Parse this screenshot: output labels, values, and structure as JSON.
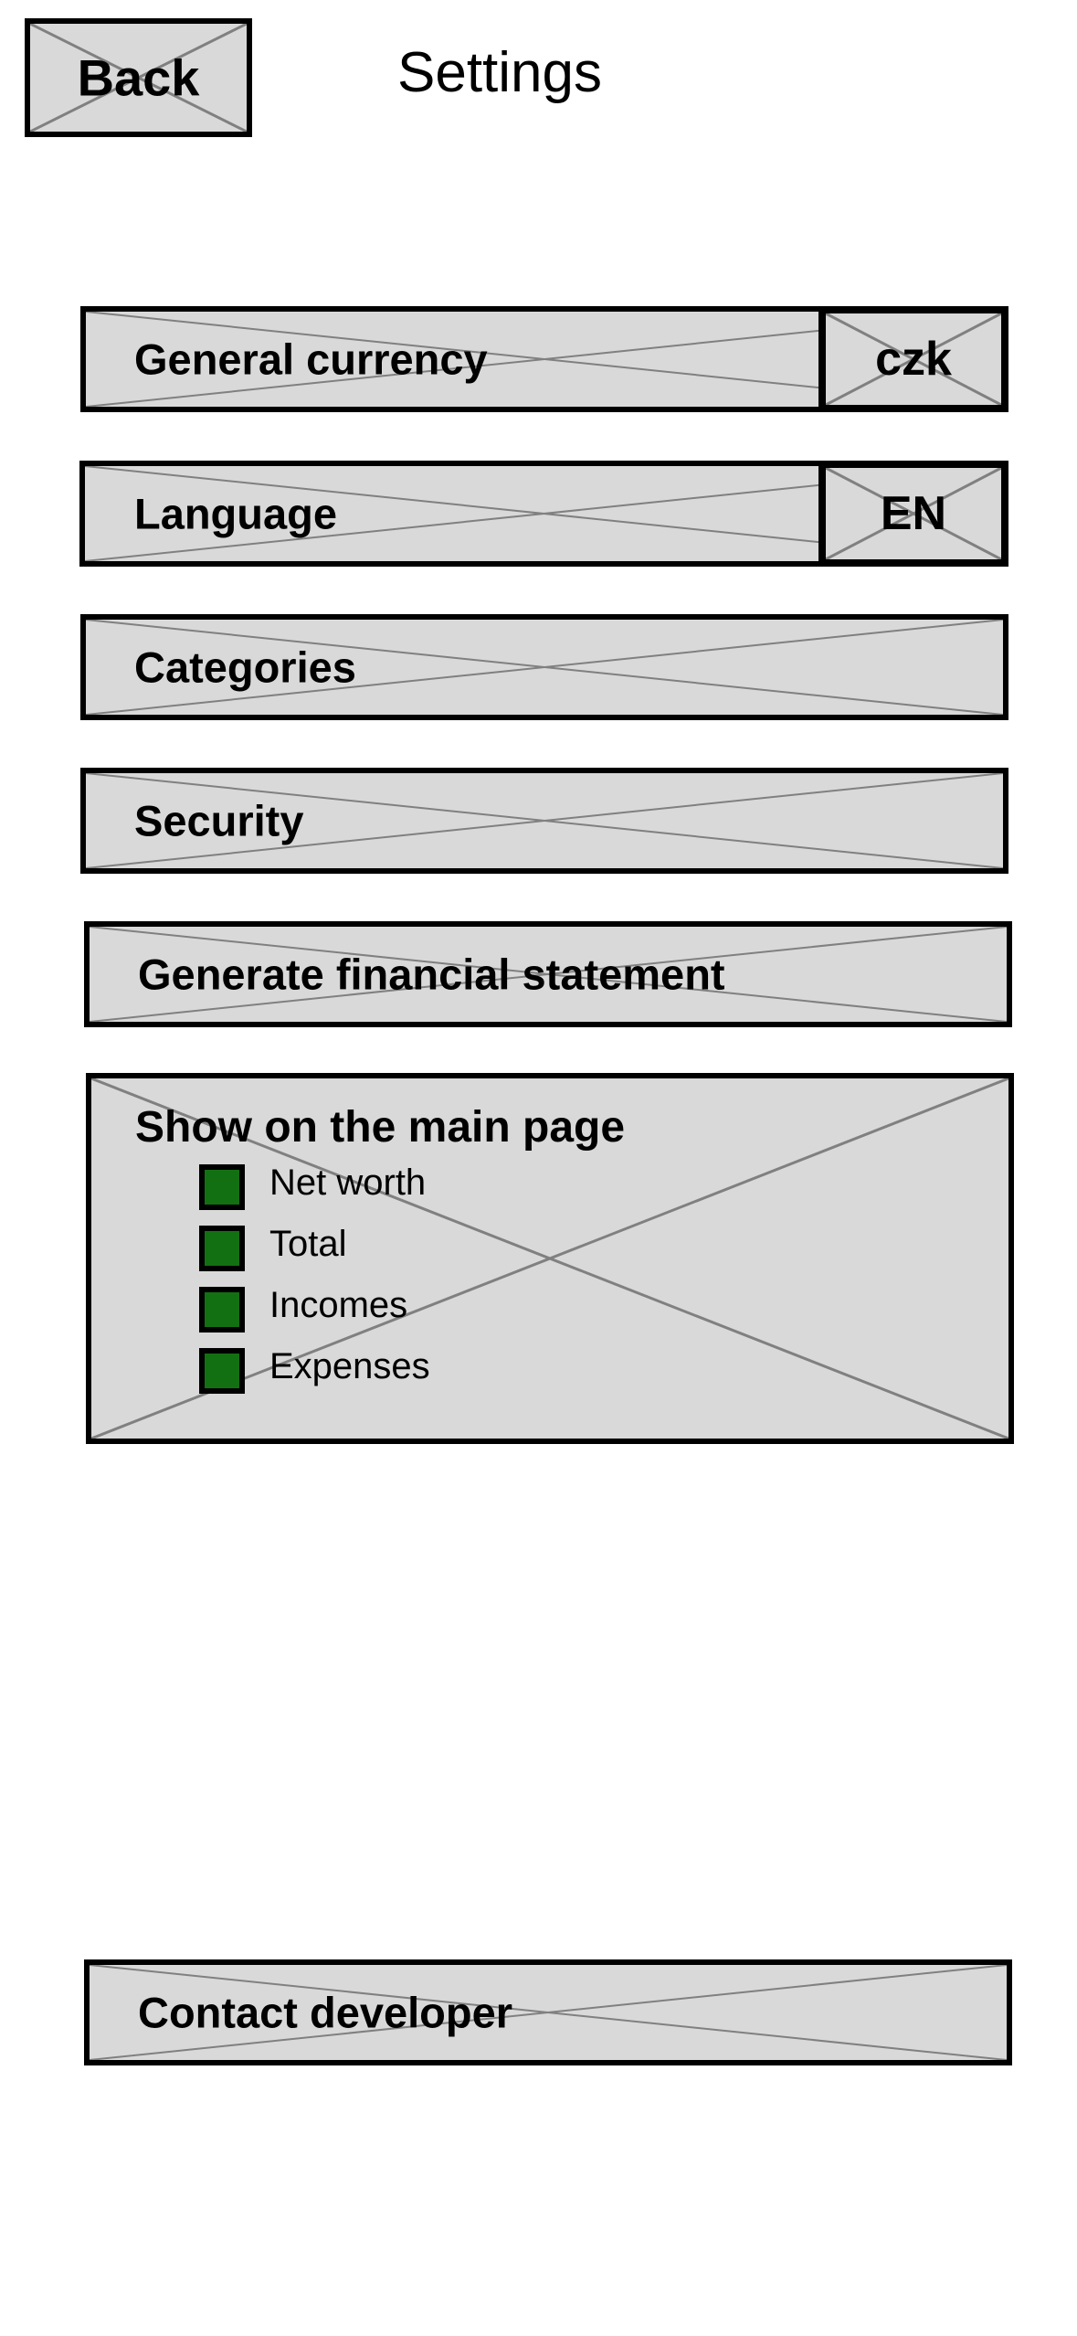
{
  "header": {
    "back_label": "Back",
    "title": "Settings"
  },
  "rows": {
    "general_currency": {
      "label": "General currency",
      "value": "czk"
    },
    "language": {
      "label": "Language",
      "value": "EN"
    },
    "categories": {
      "label": "Categories"
    },
    "security": {
      "label": "Security"
    },
    "financial_statement": {
      "label": "Generate financial statement"
    }
  },
  "main_page": {
    "title": "Show on the main page",
    "options": [
      {
        "label": "Net worth",
        "checked": true
      },
      {
        "label": "Total",
        "checked": true
      },
      {
        "label": "Incomes",
        "checked": true
      },
      {
        "label": "Expenses",
        "checked": true
      }
    ]
  },
  "contact": {
    "label": "Contact developer"
  },
  "colors": {
    "placeholder_fill": "#d9d9d9",
    "border": "#000000",
    "checkbox_fill": "#137012",
    "cross_lines": "#808080"
  }
}
